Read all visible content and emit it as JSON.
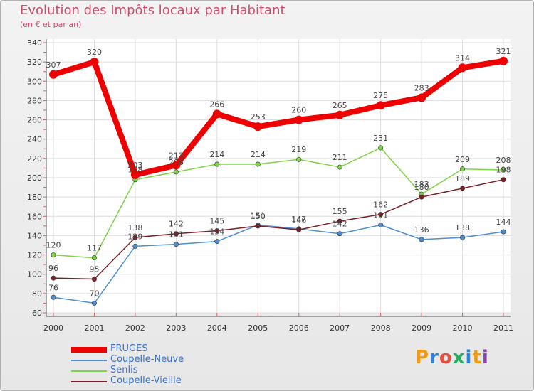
{
  "title": "Evolution des Impôts locaux par Habitant",
  "subtitle": "(en € et par an)",
  "brand": {
    "text": "Proxiti",
    "letters": [
      "P",
      "r",
      "o",
      "x",
      "i",
      "t",
      "i"
    ],
    "colors": [
      "#f39c12",
      "#2e86de",
      "#e74c3c",
      "#27ae60",
      "#2e86de",
      "#f39c12",
      "#8e44ad"
    ]
  },
  "chart_data": {
    "type": "line",
    "title": "Evolution des Impôts locaux par Habitant",
    "ylabel": "(en € et par an)",
    "xlabel": "",
    "categories": [
      "2000",
      "2001",
      "2002",
      "2003",
      "2004",
      "2005",
      "2006",
      "2007",
      "2008",
      "2009",
      "2010",
      "2011"
    ],
    "y_ticks": [
      "60",
      "80",
      "100",
      "120",
      "140",
      "160",
      "180",
      "200",
      "220",
      "240",
      "260",
      "280",
      "300",
      "320",
      "340"
    ],
    "ylim": [
      60,
      340
    ],
    "grid": true,
    "legend_position": "bottom-left",
    "series": [
      {
        "name": "FRUGES",
        "color": "#ee0000",
        "thick": true,
        "values": [
          307,
          320,
          203,
          213,
          266,
          253,
          260,
          265,
          275,
          283,
          314,
          321
        ],
        "labels": [
          "307",
          "320",
          "203",
          "213",
          "266",
          "253",
          "260",
          "265",
          "275",
          "283",
          "314",
          "321"
        ]
      },
      {
        "name": "Coupelle-Neuve",
        "color": "#4f8fd0",
        "thick": false,
        "values": [
          76,
          70,
          129,
          131,
          134,
          151,
          147,
          142,
          151,
          136,
          138,
          144
        ],
        "labels": [
          "76",
          "70",
          "129",
          "131",
          "134",
          "151",
          "147",
          "142",
          "151",
          "136",
          "138",
          "144"
        ]
      },
      {
        "name": "Senlis",
        "color": "#7ed348",
        "thick": false,
        "values": [
          120,
          117,
          198,
          206,
          214,
          214,
          219,
          211,
          231,
          183,
          209,
          208
        ],
        "labels": [
          "120",
          "117",
          "198",
          "206",
          "214",
          "214",
          "219",
          "211",
          "231",
          "183",
          "209",
          "208"
        ]
      },
      {
        "name": "Coupelle-Vieille",
        "color": "#7a1f26",
        "thick": false,
        "values": [
          96,
          95,
          138,
          142,
          145,
          150,
          146,
          155,
          162,
          180,
          189,
          198
        ],
        "labels": [
          "96",
          "95",
          "138",
          "142",
          "145",
          "150",
          "146",
          "155",
          "162",
          "180",
          "189",
          "198"
        ]
      }
    ]
  }
}
